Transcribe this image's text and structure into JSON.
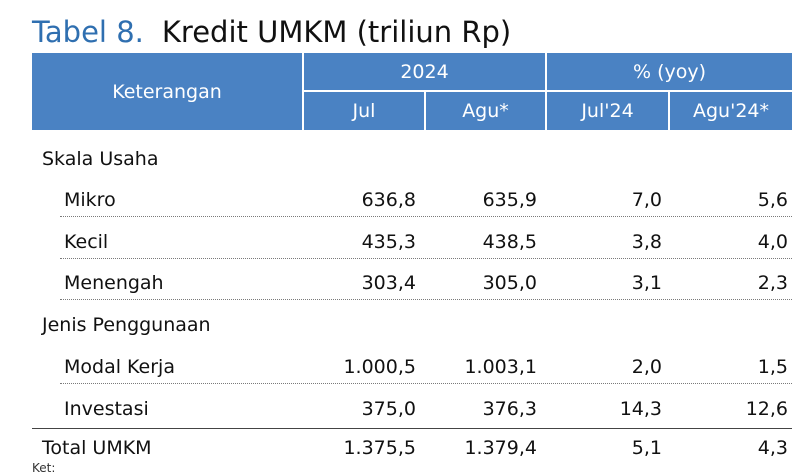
{
  "title": {
    "label": "Tabel 8.",
    "text": "Kredit UMKM (triliun Rp)"
  },
  "header": {
    "keterangan": "Keterangan",
    "group_2024": "2024",
    "group_yoy": "% (yoy)",
    "cols": [
      "Jul",
      "Agu*",
      "Jul'24",
      "Agu'24*"
    ]
  },
  "sections": [
    {
      "name": "Skala Usaha",
      "rows": [
        {
          "label": "Mikro",
          "values": [
            "636,8",
            "635,9",
            "7,0",
            "5,6"
          ]
        },
        {
          "label": "Kecil",
          "values": [
            "435,3",
            "438,5",
            "3,8",
            "4,0"
          ]
        },
        {
          "label": "Menengah",
          "values": [
            "303,4",
            "305,0",
            "3,1",
            "2,3"
          ]
        }
      ]
    },
    {
      "name": "Jenis Penggunaan",
      "rows": [
        {
          "label": "Modal Kerja",
          "values": [
            "1.000,5",
            "1.003,1",
            "2,0",
            "1,5"
          ]
        },
        {
          "label": "Investasi",
          "values": [
            "375,0",
            "376,3",
            "14,3",
            "12,6"
          ]
        }
      ]
    }
  ],
  "total": {
    "label": "Total UMKM",
    "values": [
      "1.375,5",
      "1.379,4",
      "5,1",
      "4,3"
    ]
  },
  "footnote": "Ket:"
}
